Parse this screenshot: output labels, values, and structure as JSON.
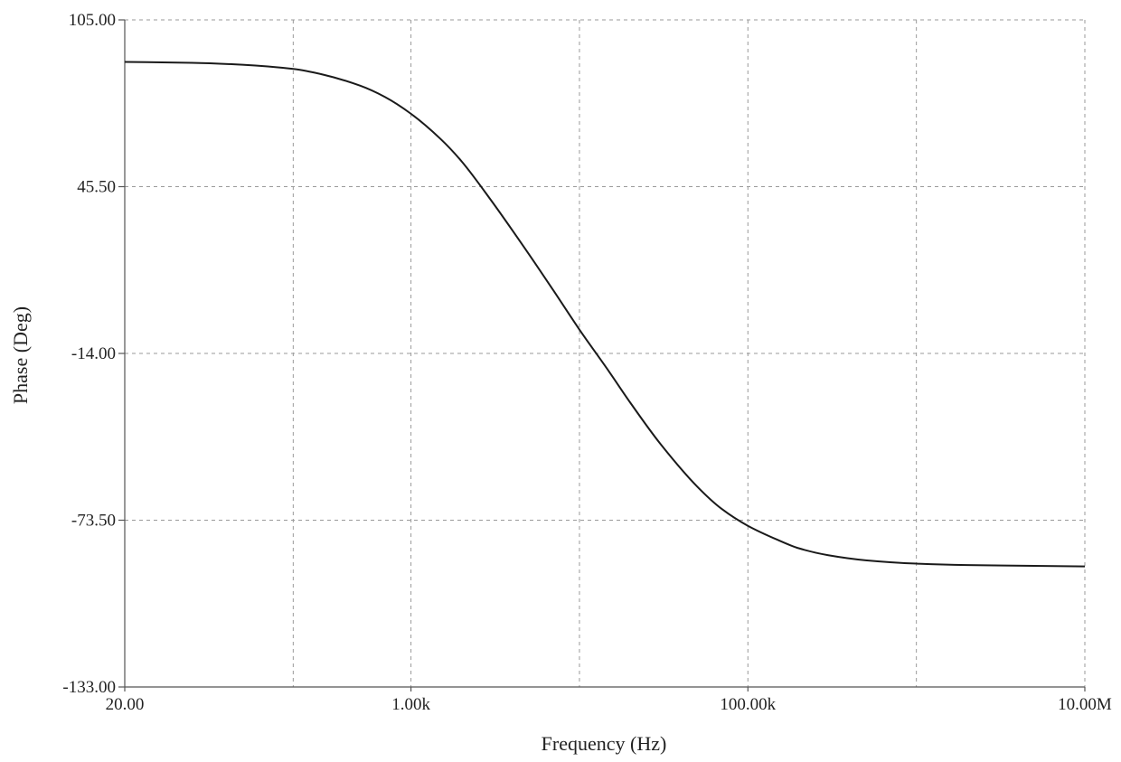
{
  "chart_data": {
    "type": "line",
    "title": "",
    "xlabel": "Frequency (Hz)",
    "ylabel": "Phase (Deg)",
    "x_scale": "log",
    "xlim": [
      20,
      10000000
    ],
    "ylim": [
      -133,
      105
    ],
    "grid": true,
    "x_ticks": [
      {
        "value": 20,
        "label": "20.00"
      },
      {
        "value": 1000,
        "label": "1.00k"
      },
      {
        "value": 100000,
        "label": "100.00k"
      },
      {
        "value": 10000000,
        "label": "10.00M"
      }
    ],
    "x_minor_grid": [
      200,
      1000,
      10000,
      100000,
      1000000
    ],
    "y_ticks": [
      {
        "value": 105,
        "label": "105.00"
      },
      {
        "value": 45.5,
        "label": "45.50"
      },
      {
        "value": -14,
        "label": "-14.00"
      },
      {
        "value": -73.5,
        "label": "-73.50"
      },
      {
        "value": -133,
        "label": "-133.00"
      }
    ],
    "series": [
      {
        "x": [
          20,
          50,
          100,
          200,
          300,
          500,
          700,
          1000,
          1500,
          2000,
          3000,
          5000,
          7000,
          10000,
          15000,
          20000,
          30000,
          50000,
          70000,
          100000,
          150000,
          200000,
          300000,
          500000,
          1000000,
          2000000,
          5000000,
          10000000
        ],
        "y": [
          90,
          89.7,
          89,
          87.5,
          85.5,
          81.5,
          77.5,
          71.5,
          62.5,
          54.5,
          40.5,
          21.5,
          8.5,
          -5.5,
          -20.5,
          -31.5,
          -46,
          -61.5,
          -69.5,
          -75.5,
          -80.5,
          -83.5,
          -86,
          -87.8,
          -89,
          -89.5,
          -89.8,
          -90
        ]
      }
    ]
  }
}
